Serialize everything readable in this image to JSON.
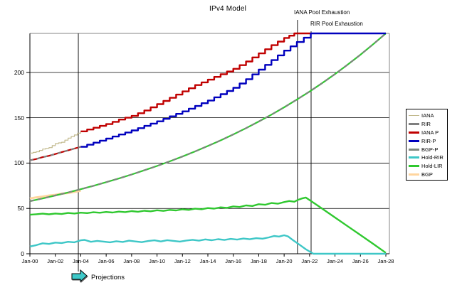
{
  "title": "IPv4 Model",
  "annotations": {
    "iana_exhaustion": "IANA Pool Exhaustion",
    "rir_exhaustion": "RIR Pool Exhaustion",
    "projections": "Projections"
  },
  "colors": {
    "red": "#C00000",
    "blue": "#0000BE",
    "cyan": "#3EC7C7",
    "green": "#2FC82F",
    "orange": "#FFD59E",
    "tan": "#C2BA8E",
    "gray": "#7F7F7F",
    "gray_green": "#7D877D",
    "arrow_fill": "#3FC9C9"
  },
  "legend": {
    "items": [
      {
        "label": "IANA",
        "color": "#C2BA8E",
        "weight": "thin"
      },
      {
        "label": "RIR",
        "color": "#7F7F7F",
        "weight": "thick"
      },
      {
        "label": "IANA P",
        "color": "#C00000",
        "weight": "thick"
      },
      {
        "label": "RIR-P",
        "color": "#0000BE",
        "weight": "thick"
      },
      {
        "label": "BGP-P",
        "color": "#7D877D",
        "weight": "thick"
      },
      {
        "label": "Hold-RIR",
        "color": "#3EC7C7",
        "weight": "thick"
      },
      {
        "label": "Hold-LIR",
        "color": "#2FC82F",
        "weight": "thick"
      },
      {
        "label": "BGP",
        "color": "#FFD59E",
        "weight": "thick"
      }
    ]
  },
  "chart_data": {
    "type": "line",
    "title": "IPv4 Model",
    "x_axis": {
      "unit": "year",
      "labels": [
        "Jan-00",
        "Jan-02",
        "Jan-04",
        "Jan-06",
        "Jan-08",
        "Jan-10",
        "Jan-12",
        "Jan-14",
        "Jan-16",
        "Jan-18",
        "Jan-20",
        "Jan-22",
        "Jan-24",
        "Jan-26",
        "Jan-28"
      ],
      "tick_interval_years": 2,
      "range_years": [
        0,
        28.3
      ]
    },
    "y_axis": {
      "ticks": [
        0,
        50,
        100,
        150,
        200
      ],
      "range": [
        0,
        243
      ],
      "gridlines": [
        50,
        100,
        150,
        200
      ]
    },
    "events": [
      {
        "name": "projections-start",
        "t": 3.81,
        "label": "Projections"
      },
      {
        "name": "iana-pool-exhaustion",
        "t": 21.05,
        "label": "IANA Pool Exhaustion"
      },
      {
        "name": "rir-pool-exhaustion",
        "t": 22.12,
        "label": "RIR Pool Exhaustion"
      }
    ],
    "series": [
      {
        "name": "BGP",
        "color": "#FFD59E",
        "width": 3,
        "interp": "linear",
        "points": [
          [
            0,
            61
          ],
          [
            0.5,
            62.2
          ],
          [
            1,
            63
          ],
          [
            1.5,
            64.2
          ],
          [
            2,
            65
          ],
          [
            2.5,
            66.2
          ],
          [
            3,
            67
          ],
          [
            3.5,
            68.2
          ],
          [
            4,
            69.5
          ]
        ]
      },
      {
        "name": "BGP-P",
        "color": "#2FC82F",
        "width": 2.2,
        "interp": "linear",
        "points": [
          [
            0,
            58
          ],
          [
            1,
            61
          ],
          [
            2,
            64.3
          ],
          [
            3,
            67.6
          ],
          [
            4,
            71.2
          ],
          [
            5,
            74.9
          ],
          [
            6,
            78.9
          ],
          [
            7,
            83
          ],
          [
            8,
            87.4
          ],
          [
            9,
            92
          ],
          [
            10,
            96.8
          ],
          [
            11,
            101.9
          ],
          [
            12,
            107.2
          ],
          [
            13,
            112.9
          ],
          [
            14,
            118.8
          ],
          [
            15,
            125
          ],
          [
            16,
            131.6
          ],
          [
            17,
            138.5
          ],
          [
            18,
            145.8
          ],
          [
            19,
            153.4
          ],
          [
            20,
            161.5
          ],
          [
            21,
            170
          ],
          [
            22,
            178.9
          ],
          [
            23,
            188.3
          ],
          [
            24,
            198.2
          ],
          [
            25,
            208.6
          ],
          [
            26,
            219.5
          ],
          [
            27,
            231
          ],
          [
            28,
            243
          ]
        ]
      },
      {
        "name": "BGP-P-overlay",
        "color": "#7D877D",
        "width": 2.2,
        "dash": "6,5",
        "interp": "linear",
        "points_from": "BGP-P"
      },
      {
        "name": "IANA",
        "color": "#C2BA8E",
        "width": 1.2,
        "interp": "step",
        "points": [
          [
            0,
            111
          ],
          [
            0.5,
            112.5
          ],
          [
            1,
            115.5
          ],
          [
            1.5,
            117
          ],
          [
            2,
            121.5
          ],
          [
            2.5,
            123
          ],
          [
            3,
            127.5
          ],
          [
            3.5,
            131
          ],
          [
            4,
            135
          ]
        ]
      },
      {
        "name": "IANA P-hist",
        "color": "#C00000",
        "width": 2.2,
        "interp": "linear",
        "points": [
          [
            0,
            103
          ],
          [
            0.5,
            104.5
          ],
          [
            1,
            106.5
          ],
          [
            1.5,
            108
          ],
          [
            2,
            110
          ],
          [
            2.5,
            112
          ],
          [
            3,
            114
          ],
          [
            3.5,
            116
          ],
          [
            4,
            118
          ]
        ]
      },
      {
        "name": "RIR",
        "color": "#7F7F7F",
        "width": 2.2,
        "dash": "5,5",
        "interp": "linear",
        "points_from": "IANA P-hist"
      },
      {
        "name": "IANA P",
        "color": "#C00000",
        "width": 2.4,
        "interp": "step",
        "points": [
          [
            4,
            135
          ],
          [
            5,
            139
          ],
          [
            6,
            143
          ],
          [
            7,
            148
          ],
          [
            8,
            152
          ],
          [
            9,
            158
          ],
          [
            10,
            165
          ],
          [
            11,
            172
          ],
          [
            12,
            179
          ],
          [
            13,
            186
          ],
          [
            14,
            192
          ],
          [
            15,
            198
          ],
          [
            16,
            204
          ],
          [
            17,
            212
          ],
          [
            18,
            221
          ],
          [
            19,
            230
          ],
          [
            20,
            238
          ],
          [
            20.8,
            243
          ],
          [
            22.1,
            243
          ]
        ]
      },
      {
        "name": "RIR-P",
        "color": "#0000BE",
        "width": 2.4,
        "interp": "step",
        "points": [
          [
            4,
            118
          ],
          [
            5,
            122.5
          ],
          [
            6,
            127
          ],
          [
            7,
            131.5
          ],
          [
            8,
            136
          ],
          [
            9,
            141
          ],
          [
            10,
            146
          ],
          [
            11,
            151.5
          ],
          [
            12,
            157
          ],
          [
            13,
            163
          ],
          [
            14,
            169
          ],
          [
            15,
            176
          ],
          [
            16,
            183
          ],
          [
            17,
            192.5
          ],
          [
            18,
            203
          ],
          [
            19,
            213.5
          ],
          [
            20,
            224
          ],
          [
            21,
            233.5
          ],
          [
            22.1,
            243
          ],
          [
            28,
            243
          ]
        ]
      },
      {
        "name": "Hold-LIR",
        "color": "#2FC82F",
        "width": 2.4,
        "interp": "linear",
        "points": [
          [
            0,
            43
          ],
          [
            0.5,
            43.6
          ],
          [
            1,
            44.2
          ],
          [
            1.5,
            43.5
          ],
          [
            2,
            44.4
          ],
          [
            2.5,
            43.8
          ],
          [
            3,
            45
          ],
          [
            3.5,
            44.4
          ],
          [
            4,
            45.3
          ],
          [
            4.5,
            44.8
          ],
          [
            5,
            45.8
          ],
          [
            5.5,
            45.2
          ],
          [
            6,
            46.1
          ],
          [
            6.5,
            45.5
          ],
          [
            7,
            46.5
          ],
          [
            7.5,
            45.9
          ],
          [
            8,
            47
          ],
          [
            8.5,
            46.3
          ],
          [
            9,
            47.4
          ],
          [
            9.5,
            46.8
          ],
          [
            10,
            48
          ],
          [
            10.5,
            47.3
          ],
          [
            11,
            48.4
          ],
          [
            11.5,
            47.8
          ],
          [
            12,
            49
          ],
          [
            12.5,
            48.4
          ],
          [
            13,
            49.7
          ],
          [
            13.5,
            49.1
          ],
          [
            14,
            50.4
          ],
          [
            14.5,
            49.8
          ],
          [
            15,
            51.2
          ],
          [
            15.5,
            50.6
          ],
          [
            16,
            52.2
          ],
          [
            16.5,
            51.6
          ],
          [
            17,
            53.3
          ],
          [
            17.5,
            52.7
          ],
          [
            18,
            54.6
          ],
          [
            18.5,
            54
          ],
          [
            19,
            56
          ],
          [
            19.5,
            55.2
          ],
          [
            20,
            57
          ],
          [
            20.4,
            58.2
          ],
          [
            20.8,
            57.4
          ],
          [
            21.1,
            59.5
          ],
          [
            21.4,
            61
          ],
          [
            21.7,
            62
          ],
          [
            22.5,
            54.5
          ],
          [
            23,
            49.7
          ],
          [
            24,
            40
          ],
          [
            25,
            30.3
          ],
          [
            26,
            20.7
          ],
          [
            27,
            11
          ],
          [
            28,
            1
          ]
        ]
      },
      {
        "name": "Hold-RIR",
        "color": "#3EC7C7",
        "width": 2.4,
        "interp": "linear",
        "points": [
          [
            0,
            8
          ],
          [
            0.5,
            9.5
          ],
          [
            1,
            11.5
          ],
          [
            1.5,
            10.8
          ],
          [
            2,
            12.3
          ],
          [
            2.5,
            11.8
          ],
          [
            3,
            13.2
          ],
          [
            3.5,
            12.6
          ],
          [
            4,
            14.8
          ],
          [
            4.3,
            15.3
          ],
          [
            4.8,
            13.2
          ],
          [
            5.3,
            14.2
          ],
          [
            5.8,
            13.4
          ],
          [
            6.3,
            12.6
          ],
          [
            6.8,
            13.8
          ],
          [
            7.3,
            13
          ],
          [
            7.8,
            14.4
          ],
          [
            8.3,
            13.6
          ],
          [
            8.8,
            12.8
          ],
          [
            9.3,
            14
          ],
          [
            9.8,
            14.8
          ],
          [
            10.3,
            13.6
          ],
          [
            10.8,
            15
          ],
          [
            11.3,
            14.2
          ],
          [
            11.8,
            13.4
          ],
          [
            12.3,
            14.6
          ],
          [
            12.8,
            15.4
          ],
          [
            13.3,
            14.4
          ],
          [
            13.8,
            15.8
          ],
          [
            14.3,
            14.9
          ],
          [
            14.8,
            16.1
          ],
          [
            15.3,
            15.2
          ],
          [
            15.8,
            16.4
          ],
          [
            16.3,
            15.6
          ],
          [
            16.8,
            16.8
          ],
          [
            17.3,
            16
          ],
          [
            17.8,
            17.2
          ],
          [
            18.3,
            16.6
          ],
          [
            18.8,
            18
          ],
          [
            19.2,
            19.6
          ],
          [
            19.6,
            19
          ],
          [
            20,
            20.4
          ],
          [
            20.3,
            19.2
          ],
          [
            20.7,
            15
          ],
          [
            21.2,
            10
          ],
          [
            21.7,
            5
          ],
          [
            22.3,
            0
          ],
          [
            28,
            0
          ]
        ]
      }
    ]
  }
}
